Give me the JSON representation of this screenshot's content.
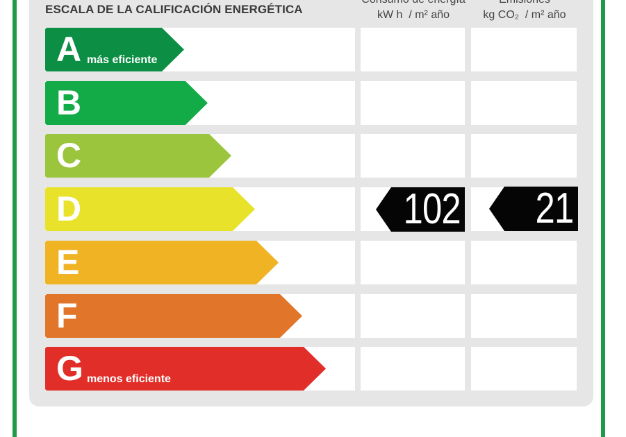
{
  "label": {
    "title": "ESCALA DE LA CALIFICACIÓN ENERGÉTICA",
    "columns": {
      "energy": {
        "line1": "Consumo de energía",
        "line2_unit": "kW h",
        "line2_suffix": "/ m² año"
      },
      "emissions": {
        "line1": "Emisiones",
        "line2_unit": "kg CO₂",
        "line2_suffix": "/ m² año"
      }
    },
    "classes": [
      {
        "letter": "A",
        "note": "más eficiente",
        "color": "#0c8f45"
      },
      {
        "letter": "B",
        "note": "",
        "color": "#13ab48"
      },
      {
        "letter": "C",
        "note": "",
        "color": "#9cc53e"
      },
      {
        "letter": "D",
        "note": "",
        "color": "#e8e32a"
      },
      {
        "letter": "E",
        "note": "",
        "color": "#efb324"
      },
      {
        "letter": "F",
        "note": "",
        "color": "#e1762a"
      },
      {
        "letter": "G",
        "note": "menos eficiente",
        "color": "#e22e29"
      }
    ],
    "rating": {
      "class": "D",
      "energy_value": "102",
      "emissions_value": "21"
    }
  },
  "colors": {
    "frame": "#1f9a49",
    "panel": "#e6e6e6",
    "tag": "#050505"
  }
}
